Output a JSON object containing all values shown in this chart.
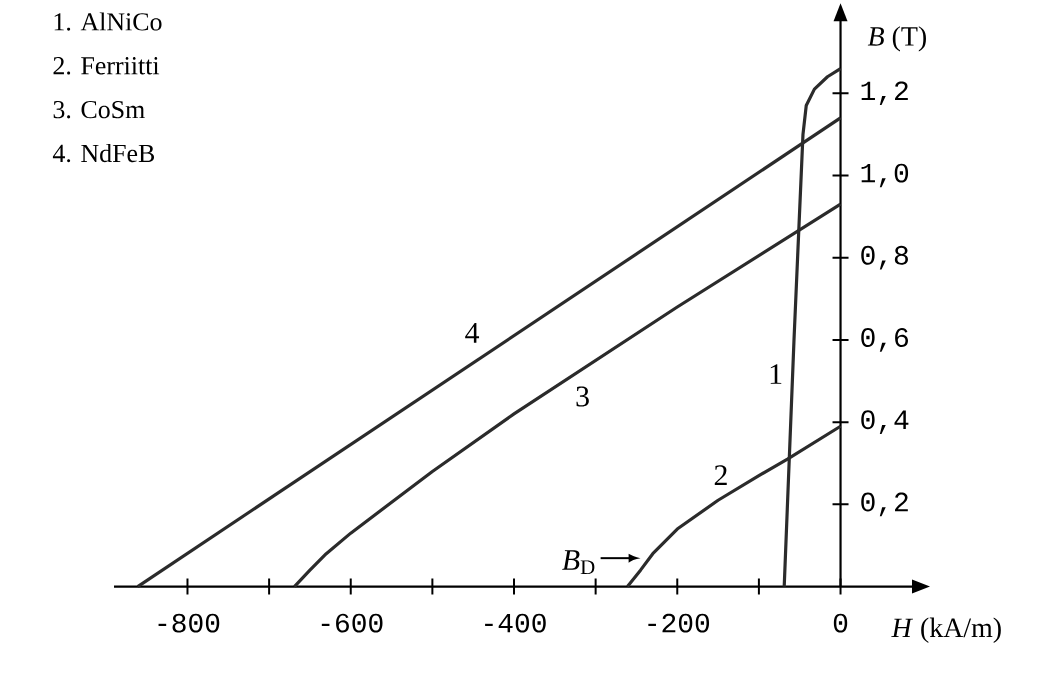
{
  "chart_data": {
    "type": "line",
    "xlabel": "*H* (kA/m)",
    "ylabel": "*B* (T)",
    "xlim": [
      -890,
      90
    ],
    "ylim": [
      0,
      1.38
    ],
    "xticks": [
      -800,
      {
        "value": -700,
        "label": null
      },
      -600,
      {
        "value": -500,
        "label": null
      },
      -400,
      {
        "value": -300,
        "label": null
      },
      -200,
      {
        "value": -100,
        "label": null
      },
      0
    ],
    "yticks": [
      {
        "value": 0.2,
        "label": "0,2"
      },
      {
        "value": 0.4,
        "label": "0,4"
      },
      {
        "value": 0.6,
        "label": "0,6"
      },
      {
        "value": 0.8,
        "label": "0,8"
      },
      {
        "value": 1.0,
        "label": "1,0"
      },
      {
        "value": 1.2,
        "label": "1,2"
      }
    ],
    "series": [
      {
        "name": "1",
        "color": "#2b2b2b",
        "x": [
          -69,
          -57,
          -46,
          -42,
          -32,
          -16,
          0
        ],
        "values": [
          0,
          0.6,
          1.1,
          1.17,
          1.21,
          1.24,
          1.26
        ]
      },
      {
        "name": "2",
        "color": "#2b2b2b",
        "x": [
          -261,
          -245,
          -230,
          -200,
          -150,
          -100,
          -65,
          0
        ],
        "values": [
          0,
          0.04,
          0.08,
          0.14,
          0.21,
          0.27,
          0.31,
          0.39
        ]
      },
      {
        "name": "3",
        "color": "#2b2b2b",
        "x": [
          -669,
          -650,
          -630,
          -600,
          -500,
          -400,
          -200,
          0
        ],
        "values": [
          0,
          0.04,
          0.08,
          0.13,
          0.28,
          0.42,
          0.68,
          0.93
        ]
      },
      {
        "name": "4",
        "color": "#2b2b2b",
        "x": [
          -861,
          0
        ],
        "values": [
          0,
          1.14
        ]
      }
    ],
    "annotations": [
      "1. AlNiCo",
      "2. Ferriitti",
      "3. CoSm",
      "4. NdFeB",
      {
        "text": "*B*$_{D}$",
        "x": -240,
        "y": 0.04
      }
    ]
  }
}
